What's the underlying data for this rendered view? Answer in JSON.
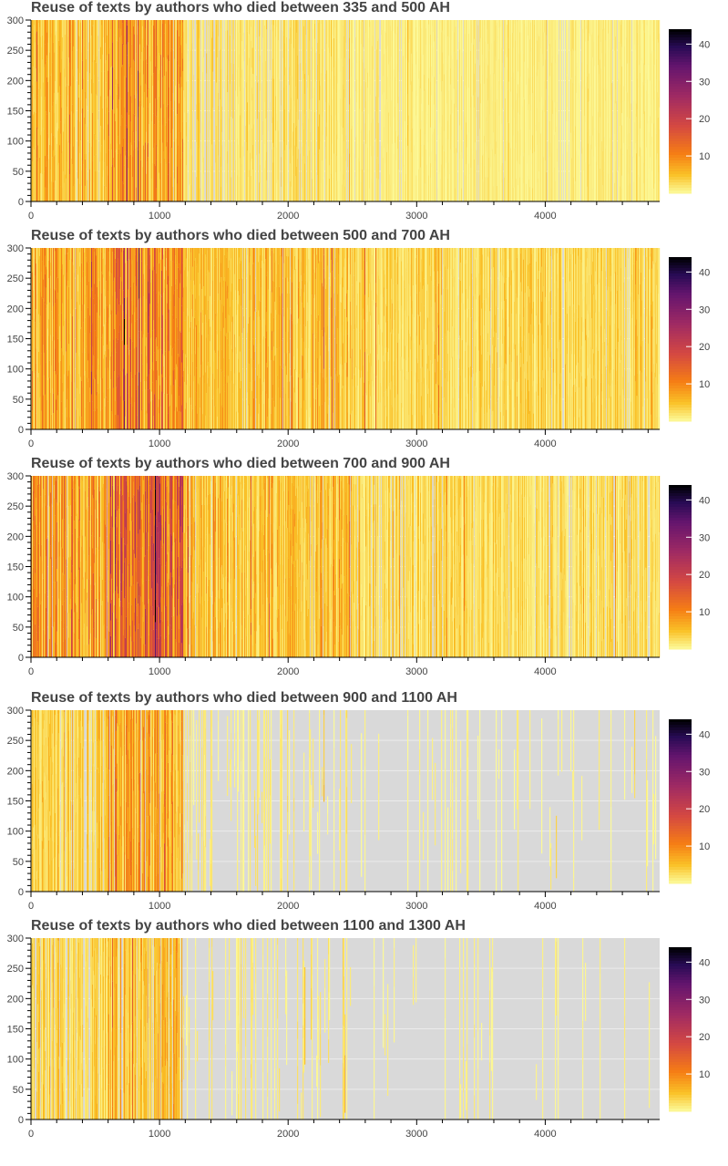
{
  "chart_data": [
    {
      "type": "heatmap",
      "title": "Reuse of texts by authors who died between 335 and 500 AH",
      "xlim": [
        0,
        4890
      ],
      "ylim": [
        0,
        300
      ],
      "xticks": [
        "0",
        "1000",
        "2000",
        "3000",
        "4000"
      ],
      "yticks": [
        "0",
        "50",
        "100",
        "150",
        "200",
        "250",
        "300"
      ],
      "colorbar": {
        "range": [
          0,
          44
        ],
        "ticks": [
          "10",
          "20",
          "30",
          "40"
        ],
        "palette": "inferno-reversed"
      },
      "profile": [
        {
          "x0": 0,
          "x1": 600,
          "intensity": 5,
          "coverage": 0.92
        },
        {
          "x0": 600,
          "x1": 1180,
          "intensity": 8,
          "coverage": 0.98
        },
        {
          "x0": 1180,
          "x1": 2500,
          "intensity": 2.5,
          "coverage": 0.8
        },
        {
          "x0": 2500,
          "x1": 4890,
          "intensity": 1.5,
          "coverage": 0.93
        }
      ]
    },
    {
      "type": "heatmap",
      "title": "Reuse of texts by authors who died between 500 and 700 AH",
      "xlim": [
        0,
        4890
      ],
      "ylim": [
        0,
        300
      ],
      "xticks": [
        "0",
        "1000",
        "2000",
        "3000",
        "4000"
      ],
      "yticks": [
        "0",
        "50",
        "100",
        "150",
        "200",
        "250",
        "300"
      ],
      "colorbar": {
        "range": [
          0,
          44
        ],
        "ticks": [
          "10",
          "20",
          "30",
          "40"
        ],
        "palette": "inferno-reversed"
      },
      "profile": [
        {
          "x0": 0,
          "x1": 600,
          "intensity": 7,
          "coverage": 0.99
        },
        {
          "x0": 600,
          "x1": 1180,
          "intensity": 10,
          "coverage": 1
        },
        {
          "x0": 1180,
          "x1": 2500,
          "intensity": 5,
          "coverage": 0.98
        },
        {
          "x0": 2500,
          "x1": 4890,
          "intensity": 3.5,
          "coverage": 0.96
        }
      ]
    },
    {
      "type": "heatmap",
      "title": "Reuse of texts by authors who died between 700 and 900 AH",
      "xlim": [
        0,
        4890
      ],
      "ylim": [
        0,
        300
      ],
      "xticks": [
        "0",
        "1000",
        "2000",
        "3000",
        "4000"
      ],
      "yticks": [
        "0",
        "50",
        "100",
        "150",
        "200",
        "250",
        "300"
      ],
      "colorbar": {
        "range": [
          0,
          44
        ],
        "ticks": [
          "10",
          "20",
          "30",
          "40"
        ],
        "palette": "inferno-reversed"
      },
      "profile": [
        {
          "x0": 0,
          "x1": 600,
          "intensity": 8,
          "coverage": 0.97
        },
        {
          "x0": 600,
          "x1": 1180,
          "intensity": 14,
          "coverage": 1
        },
        {
          "x0": 1180,
          "x1": 2500,
          "intensity": 5,
          "coverage": 0.96
        },
        {
          "x0": 2500,
          "x1": 4890,
          "intensity": 3,
          "coverage": 0.9
        }
      ]
    },
    {
      "type": "heatmap",
      "title": "Reuse of texts by authors who died between 900 and 1100 AH",
      "xlim": [
        0,
        4890
      ],
      "ylim": [
        0,
        300
      ],
      "xticks": [
        "0",
        "1000",
        "2000",
        "3000",
        "4000"
      ],
      "yticks": [
        "0",
        "50",
        "100",
        "150",
        "200",
        "250",
        "300"
      ],
      "colorbar": {
        "range": [
          0,
          44
        ],
        "ticks": [
          "10",
          "20",
          "30",
          "40"
        ],
        "palette": "inferno-reversed"
      },
      "profile": [
        {
          "x0": 0,
          "x1": 600,
          "intensity": 4,
          "coverage": 0.85
        },
        {
          "x0": 600,
          "x1": 1180,
          "intensity": 7,
          "coverage": 0.95
        },
        {
          "x0": 1180,
          "x1": 2500,
          "intensity": 1.5,
          "coverage": 0.35
        },
        {
          "x0": 2500,
          "x1": 4890,
          "intensity": 1,
          "coverage": 0.15
        }
      ]
    },
    {
      "type": "heatmap",
      "title": "Reuse of texts by authors who died between 1100 and 1300 AH",
      "xlim": [
        0,
        4890
      ],
      "ylim": [
        0,
        300
      ],
      "xticks": [
        "0",
        "1000",
        "2000",
        "3000",
        "4000"
      ],
      "yticks": [
        "0",
        "50",
        "100",
        "150",
        "200",
        "250",
        "300"
      ],
      "colorbar": {
        "range": [
          0,
          44
        ],
        "ticks": [
          "10",
          "20",
          "30",
          "40"
        ],
        "palette": "inferno-reversed"
      },
      "profile": [
        {
          "x0": 0,
          "x1": 600,
          "intensity": 3.5,
          "coverage": 0.75
        },
        {
          "x0": 600,
          "x1": 1180,
          "intensity": 5,
          "coverage": 0.85
        },
        {
          "x0": 1180,
          "x1": 2500,
          "intensity": 1.5,
          "coverage": 0.3
        },
        {
          "x0": 2500,
          "x1": 4890,
          "intensity": 1,
          "coverage": 0.08
        }
      ]
    }
  ]
}
